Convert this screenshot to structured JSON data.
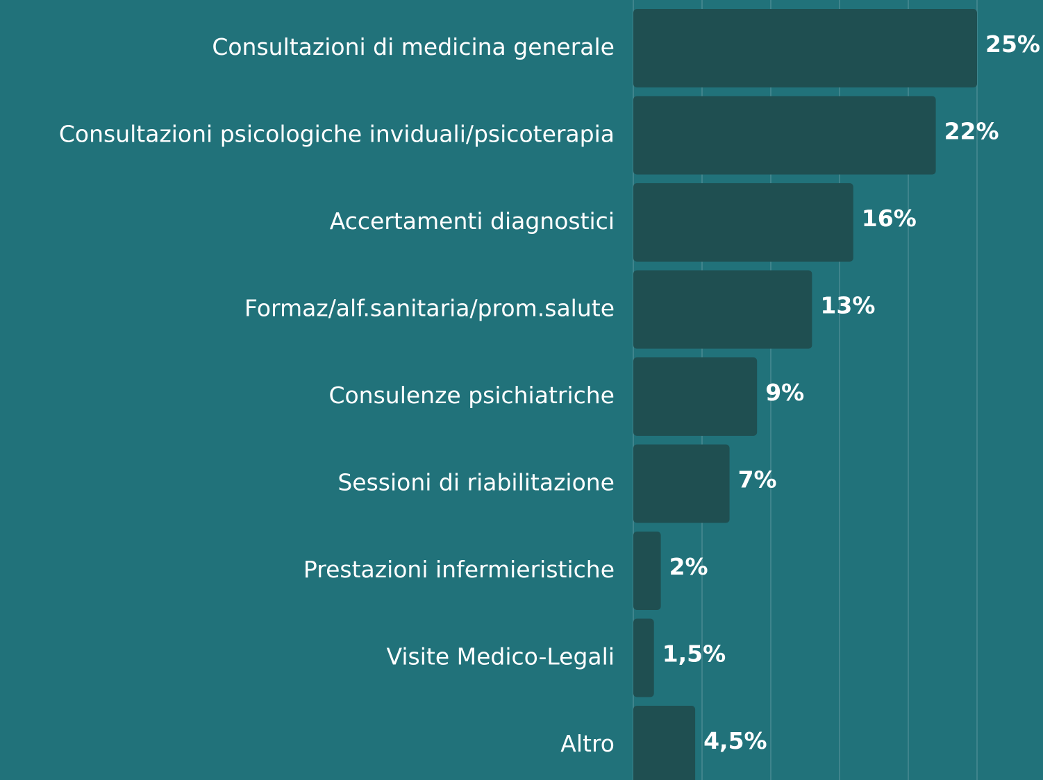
{
  "chart_data": {
    "type": "bar",
    "orientation": "horizontal",
    "categories": [
      "Consultazioni di medicina generale",
      "Consultazioni psicologiche inviduali/psicoterapia",
      "Accertamenti diagnostici",
      "Formaz/alf.sanitaria/prom.salute",
      "Consulenze psichiatriche",
      "Sessioni di riabilitazione",
      "Prestazioni infermieristiche",
      "Visite Medico-Legali",
      "Altro"
    ],
    "values": [
      25,
      22,
      16,
      13,
      9,
      7,
      2,
      1.5,
      4.5
    ],
    "value_labels": [
      "25%",
      "22%",
      "16%",
      "13%",
      "9%",
      "7%",
      "2%",
      "1,5%",
      "4,5%"
    ],
    "color": "#1f4f51",
    "xlim": [
      0,
      30
    ],
    "xticks": [
      0,
      5,
      10,
      15,
      20,
      25,
      30
    ],
    "grid": true
  }
}
